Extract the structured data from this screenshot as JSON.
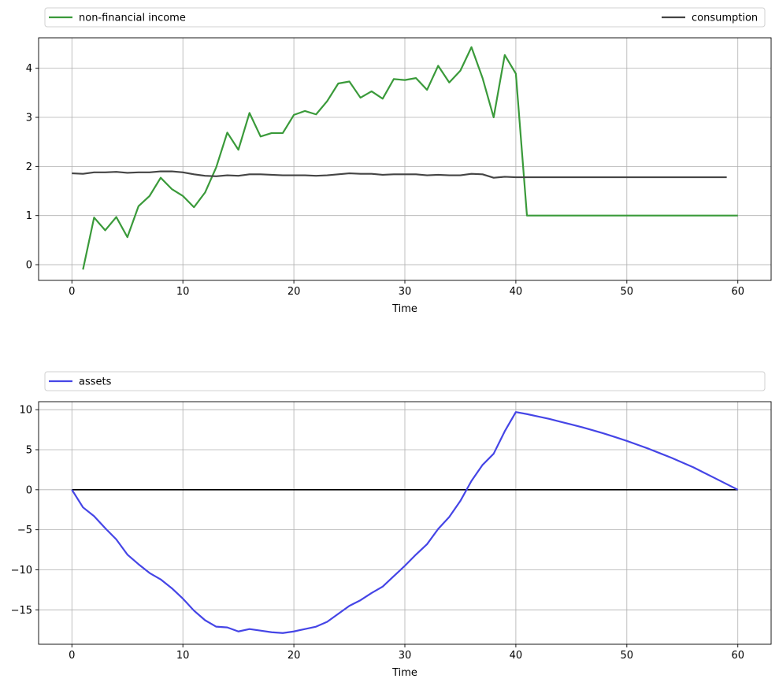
{
  "chart_data": [
    {
      "type": "line",
      "title": "",
      "xlabel": "Time",
      "ylabel": "",
      "xlim": [
        -3,
        63
      ],
      "ylim": [
        -0.32,
        4.62
      ],
      "xticks": [
        0,
        10,
        20,
        30,
        40,
        50,
        60
      ],
      "xtick_labels": [
        "0",
        "10",
        "20",
        "30",
        "40",
        "50",
        "60"
      ],
      "yticks": [
        0,
        1,
        2,
        3,
        4
      ],
      "ytick_labels": [
        "0",
        "1",
        "2",
        "3",
        "4"
      ],
      "grid": true,
      "legend": {
        "placement": "above",
        "mode": "expand",
        "ncol": 2
      },
      "series": [
        {
          "name": "non-financial income",
          "color": "#3a9a3a",
          "x": [
            1,
            2,
            3,
            4,
            5,
            6,
            7,
            8,
            9,
            10,
            11,
            12,
            13,
            14,
            15,
            16,
            17,
            18,
            19,
            20,
            21,
            22,
            23,
            24,
            25,
            26,
            27,
            28,
            29,
            30,
            31,
            32,
            33,
            34,
            35,
            36,
            37,
            38,
            39,
            40,
            41,
            42,
            43,
            44,
            45,
            46,
            47,
            48,
            49,
            50,
            51,
            52,
            53,
            54,
            55,
            56,
            57,
            58,
            59,
            60
          ],
          "values": [
            -0.1,
            0.96,
            0.7,
            0.97,
            0.56,
            1.19,
            1.4,
            1.77,
            1.54,
            1.4,
            1.17,
            1.47,
            1.98,
            2.69,
            2.34,
            3.09,
            2.61,
            2.68,
            2.68,
            3.05,
            3.13,
            3.06,
            3.33,
            3.69,
            3.73,
            3.4,
            3.53,
            3.38,
            3.78,
            3.76,
            3.8,
            3.56,
            4.05,
            3.71,
            3.95,
            4.43,
            3.8,
            3.0,
            4.27,
            3.89,
            1.0,
            1.0,
            1.0,
            1.0,
            1.0,
            1.0,
            1.0,
            1.0,
            1.0,
            1.0,
            1.0,
            1.0,
            1.0,
            1.0,
            1.0,
            1.0,
            1.0,
            1.0,
            1.0,
            1.0
          ]
        },
        {
          "name": "consumption",
          "color": "#444444",
          "x": [
            0,
            1,
            2,
            3,
            4,
            5,
            6,
            7,
            8,
            9,
            10,
            11,
            12,
            13,
            14,
            15,
            16,
            17,
            18,
            19,
            20,
            21,
            22,
            23,
            24,
            25,
            26,
            27,
            28,
            29,
            30,
            31,
            32,
            33,
            34,
            35,
            36,
            37,
            38,
            39,
            40,
            41,
            42,
            43,
            44,
            45,
            46,
            47,
            48,
            49,
            50,
            51,
            52,
            53,
            54,
            55,
            56,
            57,
            58,
            59
          ],
          "values": [
            1.86,
            1.85,
            1.88,
            1.88,
            1.89,
            1.87,
            1.88,
            1.88,
            1.9,
            1.9,
            1.88,
            1.84,
            1.81,
            1.8,
            1.82,
            1.81,
            1.84,
            1.84,
            1.83,
            1.82,
            1.82,
            1.82,
            1.81,
            1.82,
            1.84,
            1.86,
            1.85,
            1.85,
            1.83,
            1.84,
            1.84,
            1.84,
            1.82,
            1.83,
            1.82,
            1.82,
            1.85,
            1.84,
            1.77,
            1.79,
            1.78,
            1.78,
            1.78,
            1.78,
            1.78,
            1.78,
            1.78,
            1.78,
            1.78,
            1.78,
            1.78,
            1.78,
            1.78,
            1.78,
            1.78,
            1.78,
            1.78,
            1.78,
            1.78,
            1.78
          ]
        }
      ]
    },
    {
      "type": "line",
      "title": "",
      "xlabel": "Time",
      "ylabel": "",
      "xlim": [
        -3,
        63
      ],
      "ylim": [
        -19.3,
        11.0
      ],
      "xticks": [
        0,
        10,
        20,
        30,
        40,
        50,
        60
      ],
      "xtick_labels": [
        "0",
        "10",
        "20",
        "30",
        "40",
        "50",
        "60"
      ],
      "yticks": [
        10,
        5,
        0,
        -5,
        -10,
        -15
      ],
      "ytick_labels": [
        "10",
        "5",
        "0",
        "−5",
        "−10",
        "−15"
      ],
      "grid": true,
      "legend": {
        "placement": "above",
        "mode": "expand",
        "ncol": 1
      },
      "hline": {
        "y": 0,
        "color": "#000000"
      },
      "series": [
        {
          "name": "assets",
          "color": "#4545e6",
          "x": [
            0,
            1,
            2,
            3,
            4,
            5,
            6,
            7,
            8,
            9,
            10,
            11,
            12,
            13,
            14,
            15,
            16,
            17,
            18,
            19,
            20,
            21,
            22,
            23,
            24,
            25,
            26,
            27,
            28,
            29,
            30,
            31,
            32,
            33,
            34,
            35,
            36,
            37,
            38,
            39,
            40,
            41,
            42,
            43,
            44,
            45,
            46,
            47,
            48,
            49,
            50,
            51,
            52,
            53,
            54,
            55,
            56,
            57,
            58,
            59,
            60
          ],
          "values": [
            0.0,
            -2.2,
            -3.3,
            -4.8,
            -6.2,
            -8.1,
            -9.3,
            -10.4,
            -11.2,
            -12.3,
            -13.6,
            -15.1,
            -16.3,
            -17.1,
            -17.2,
            -17.7,
            -17.4,
            -17.6,
            -17.8,
            -17.9,
            -17.7,
            -17.4,
            -17.1,
            -16.5,
            -15.5,
            -14.5,
            -13.8,
            -12.9,
            -12.1,
            -10.8,
            -9.5,
            -8.1,
            -6.8,
            -4.9,
            -3.4,
            -1.4,
            1.1,
            3.1,
            4.5,
            7.3,
            9.7,
            9.45,
            9.15,
            8.85,
            8.5,
            8.15,
            7.8,
            7.4,
            7.0,
            6.55,
            6.1,
            5.6,
            5.1,
            4.55,
            4.0,
            3.4,
            2.8,
            2.1,
            1.4,
            0.7,
            0.0
          ]
        }
      ]
    }
  ]
}
